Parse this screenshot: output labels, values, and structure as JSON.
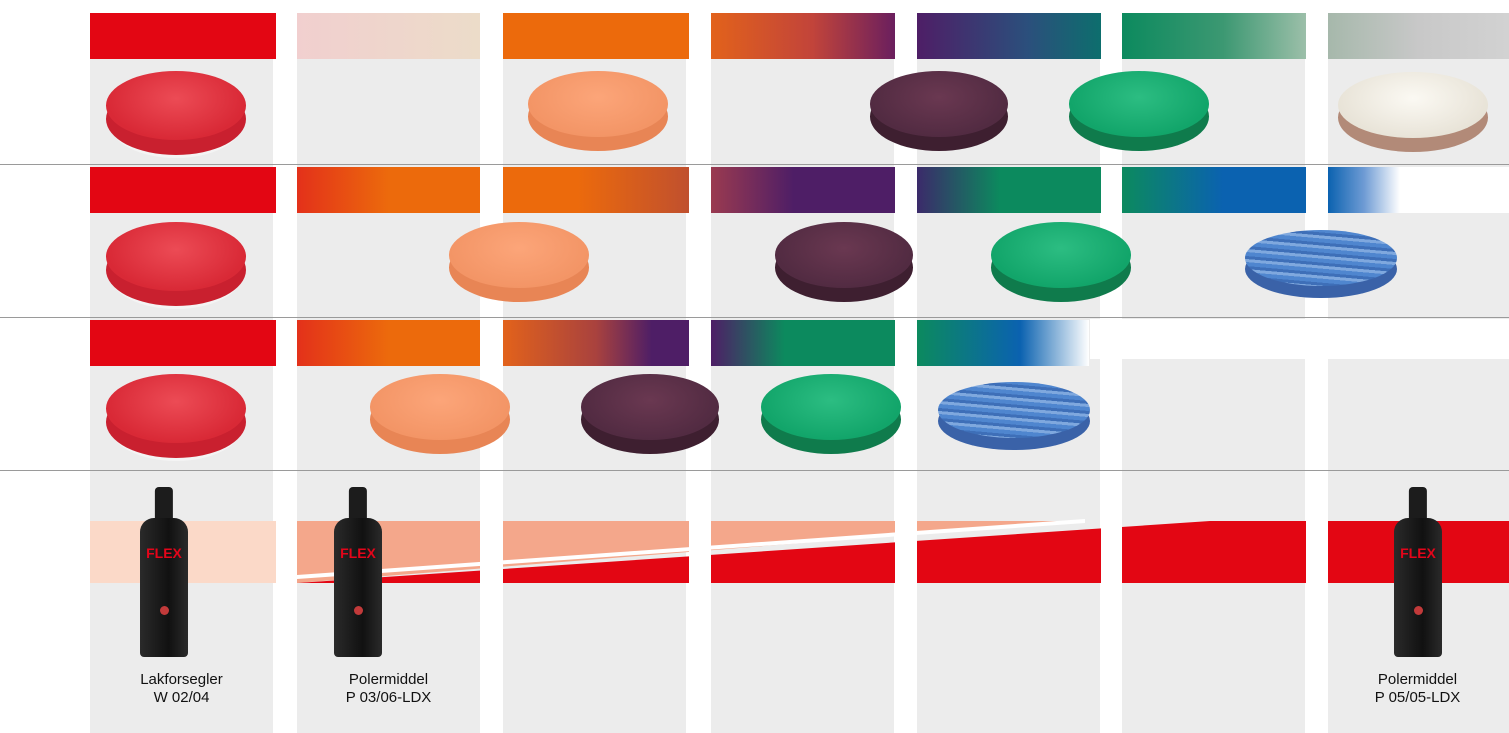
{
  "colors": {
    "red": "#e30613",
    "orange": "#ec6a0c",
    "purple": "#4e1e66",
    "green": "#0c8a5e",
    "blue": "#0b62b0",
    "grey": "#c6c6c6",
    "salmon": "#f4a78b",
    "column_bg": "#ececec"
  },
  "pad_rows": [
    {
      "bars": [
        "red",
        "pale-pink",
        "orange",
        "orange-to-purple",
        "purple-to-green",
        "green-fade",
        "grey-fade"
      ],
      "pads": [
        "red-foam-pad-with-white-backing",
        "orange-foam-pad",
        "purple-foam-pad",
        "green-foam-pad",
        "white-wool-pad"
      ]
    },
    {
      "bars": [
        "red",
        "red-to-orange",
        "orange-to-purple",
        "purple",
        "purple-to-green",
        "green-to-blue",
        "blue-fade"
      ],
      "pads": [
        "red-foam-pad-with-white-backing",
        "orange-foam-pad",
        "purple-foam-pad",
        "green-foam-pad",
        "blue-microfiber-pad"
      ]
    },
    {
      "bars": [
        "red",
        "red-to-orange",
        "orange-to-purple",
        "purple-to-green",
        "green-to-blue-fade"
      ],
      "pads": [
        "red-foam-pad-with-white-backing",
        "orange-foam-pad",
        "purple-foam-pad",
        "green-foam-pad",
        "blue-microfiber-pad"
      ]
    }
  ],
  "products": [
    {
      "icon": "polish-bottle-icon",
      "brand": "FLEX",
      "name": "Lakforsegler",
      "code": "W 02/04"
    },
    {
      "icon": "polish-bottle-icon",
      "brand": "FLEX",
      "name": "Polermiddel",
      "code": "P 03/06-LDX"
    },
    {
      "icon": "polish-bottle-icon",
      "brand": "FLEX",
      "name": "Polermiddel",
      "code": "P 05/05-LDX"
    }
  ],
  "abrasiveness_band": {
    "colors": [
      "#fbd9c8",
      "#f4a78b",
      "#e30613"
    ]
  }
}
